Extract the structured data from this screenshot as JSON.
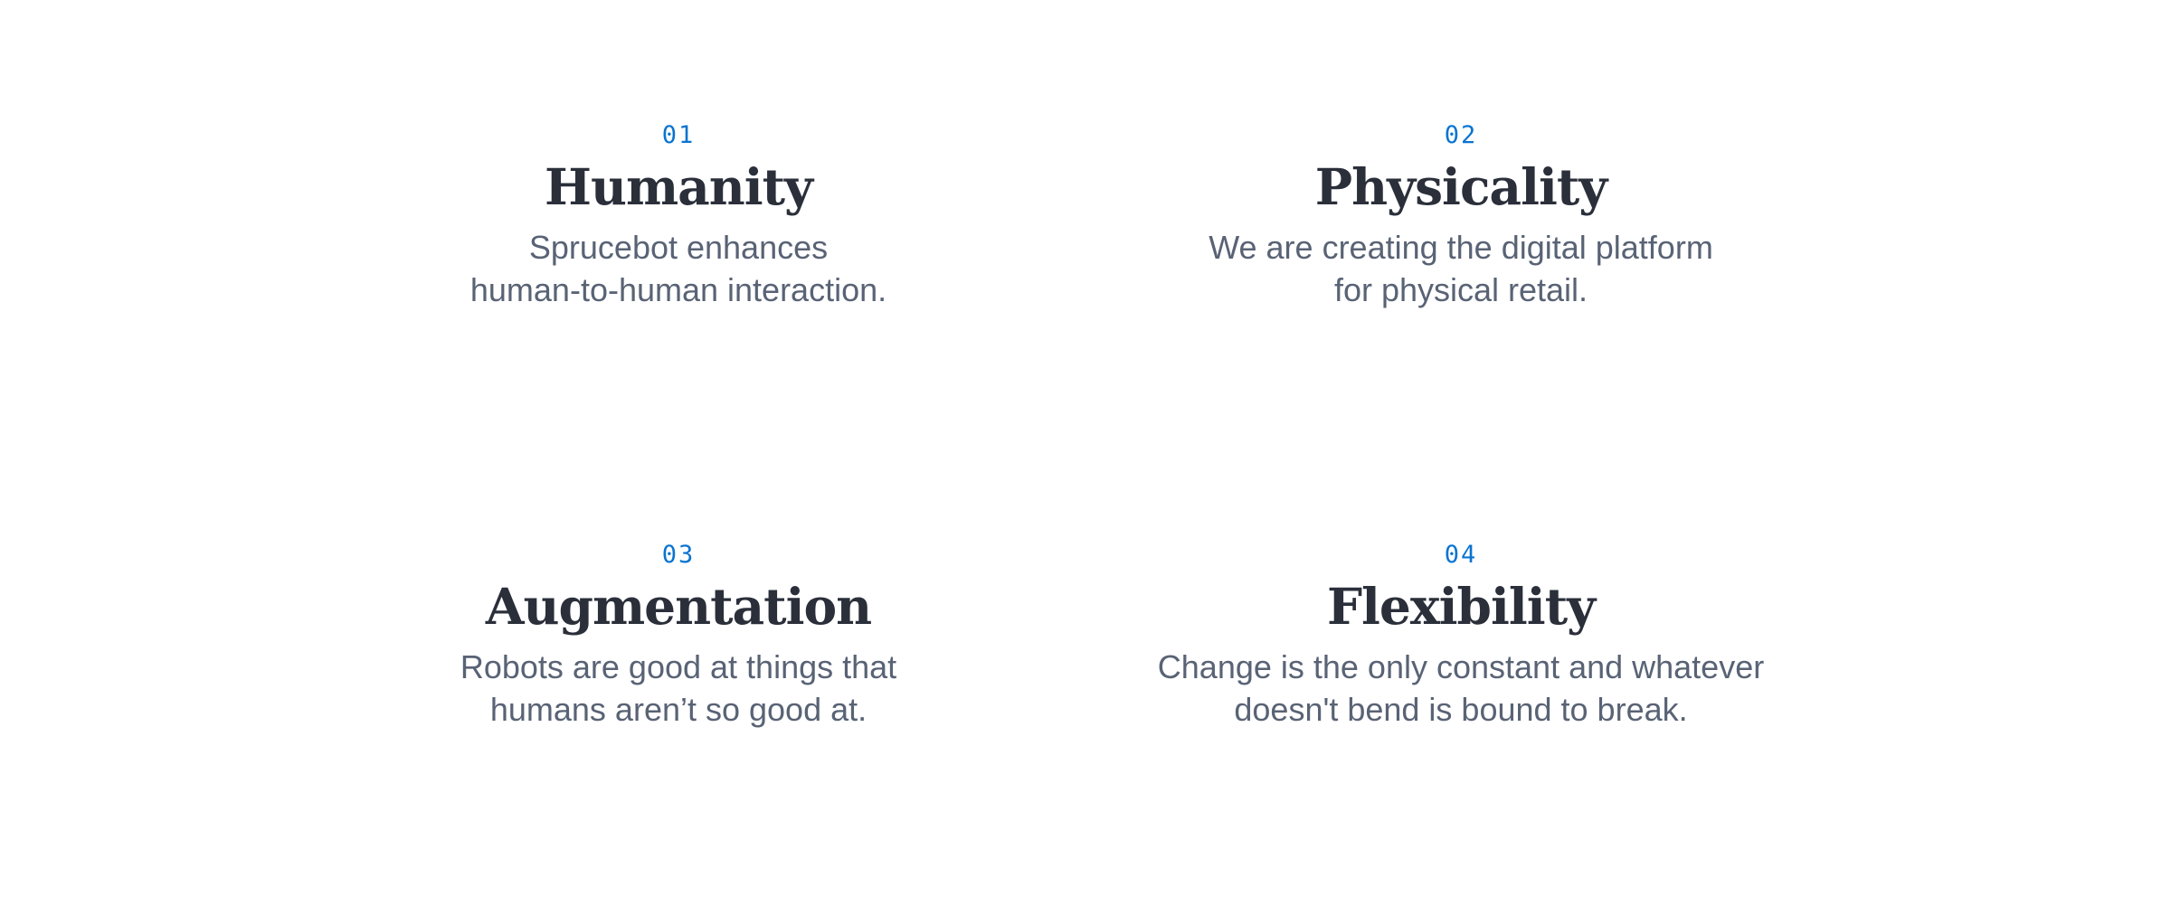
{
  "features": [
    {
      "number": "01",
      "title": "Humanity",
      "description": "Sprucebot enhances\nhuman-to-human interaction."
    },
    {
      "number": "02",
      "title": "Physicality",
      "description": "We are creating the digital platform\nfor physical retail."
    },
    {
      "number": "03",
      "title": "Augmentation",
      "description": "Robots are good at things that\nhumans aren’t so good at."
    },
    {
      "number": "04",
      "title": "Flexibility",
      "description": "Change is the only constant and whatever\ndoesn't bend is bound to break."
    }
  ],
  "colors": {
    "number": "#0a74d0",
    "title": "#2a2f3a",
    "description": "#596375",
    "background": "#ffffff"
  }
}
